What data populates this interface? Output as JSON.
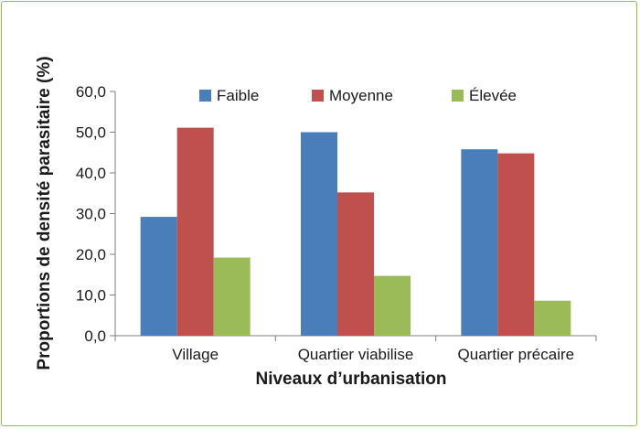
{
  "chart_data": {
    "type": "bar",
    "title": "",
    "xlabel": "Niveaux d’urbanisation",
    "ylabel": "Proportions de densité parasitaire (%)",
    "categories": [
      "Village",
      "Quartier viabilise",
      "Quartier précaire"
    ],
    "series": [
      {
        "name": "Faible",
        "color": "#4a7ebb",
        "values": [
          29.2,
          50.0,
          45.8
        ]
      },
      {
        "name": "Moyenne",
        "color": "#c0504d",
        "values": [
          51.1,
          35.2,
          44.8
        ]
      },
      {
        "name": "Élevée",
        "color": "#9bbb59",
        "values": [
          19.2,
          14.7,
          8.6
        ]
      }
    ],
    "ylim": [
      0,
      60
    ],
    "yticks": [
      "0,0",
      "10,0",
      "20,0",
      "30,0",
      "40,0",
      "50,0",
      "60,0"
    ],
    "grid": false,
    "legend": "top"
  }
}
